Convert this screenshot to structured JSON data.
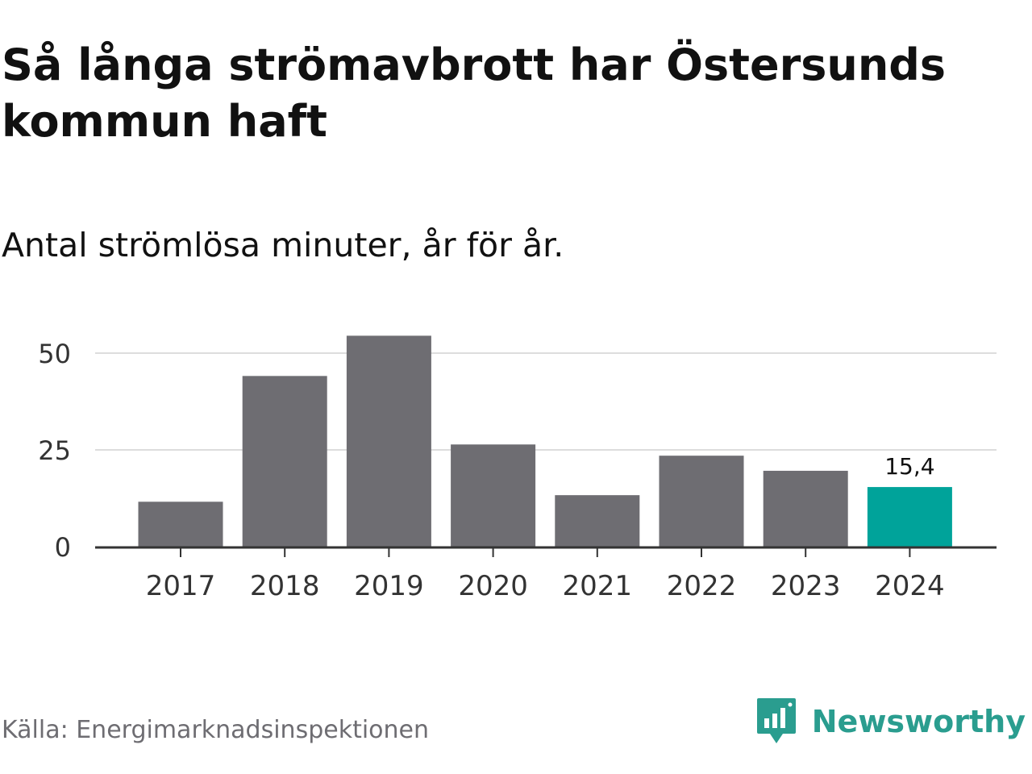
{
  "title": "Så långa strömavbrott har Östersunds kommun haft",
  "subtitle": "Antal strömlösa minuter, år för år.",
  "source": "Källa: Energimarknadsinspektionen",
  "brand": {
    "name": "Newsworthy",
    "icon": "newsworthy-logo-icon",
    "color": "#2a9d8f"
  },
  "colors": {
    "bar": "#6e6d72",
    "highlight": "#00a39a",
    "grid": "#dddddd",
    "axis": "#333333",
    "tick_text": "#333333"
  },
  "chart_data": {
    "type": "bar",
    "categories": [
      "2017",
      "2018",
      "2019",
      "2020",
      "2021",
      "2022",
      "2023",
      "2024"
    ],
    "values": [
      11.6,
      44.1,
      54.5,
      26.4,
      13.3,
      23.5,
      19.6,
      15.4
    ],
    "highlight_index": 7,
    "data_labels": [
      {
        "index": 7,
        "text": "15,4"
      }
    ],
    "yticks": [
      0,
      25,
      50
    ],
    "ylim": [
      0,
      55
    ],
    "grid": true,
    "xlabel": "",
    "ylabel": ""
  }
}
